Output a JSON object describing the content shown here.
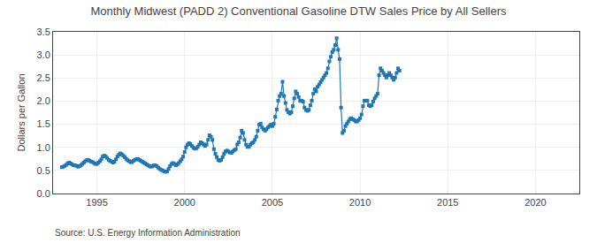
{
  "chart_data": {
    "type": "line",
    "title": "Monthly Midwest (PADD 2) Conventional Gasoline DTW Sales Price by All Sellers",
    "ylabel": "Dollars per Gallon",
    "annotations": [
      "Source: U.S. Energy Information Administration"
    ],
    "marker": "square",
    "line_style": "solid",
    "grid": true,
    "xlim": [
      1992.5,
      2022.5
    ],
    "xticks": [
      1995,
      2000,
      2005,
      2010,
      2015,
      2020
    ],
    "ylim": [
      0.0,
      3.5
    ],
    "yticks": [
      {
        "value": 0.0,
        "label": "0.0"
      },
      0.5,
      {
        "value": 1.0,
        "label": "1.0"
      },
      1.5,
      {
        "value": 2.0,
        "label": "2.0"
      },
      2.5,
      {
        "value": 3.0,
        "label": "3.0"
      },
      3.5
    ],
    "x": [
      1993.0,
      1993.083,
      1993.167,
      1993.25,
      1993.333,
      1993.417,
      1993.5,
      1993.583,
      1993.667,
      1993.75,
      1993.833,
      1993.917,
      1994.0,
      1994.083,
      1994.167,
      1994.25,
      1994.333,
      1994.417,
      1994.5,
      1994.583,
      1994.667,
      1994.75,
      1994.833,
      1994.917,
      1995.0,
      1995.083,
      1995.167,
      1995.25,
      1995.333,
      1995.417,
      1995.5,
      1995.583,
      1995.667,
      1995.75,
      1995.833,
      1995.917,
      1996.0,
      1996.083,
      1996.167,
      1996.25,
      1996.333,
      1996.417,
      1996.5,
      1996.583,
      1996.667,
      1996.75,
      1996.833,
      1996.917,
      1997.0,
      1997.083,
      1997.167,
      1997.25,
      1997.333,
      1997.417,
      1997.5,
      1997.583,
      1997.667,
      1997.75,
      1997.833,
      1997.917,
      1998.0,
      1998.083,
      1998.167,
      1998.25,
      1998.333,
      1998.417,
      1998.5,
      1998.583,
      1998.667,
      1998.75,
      1998.833,
      1998.917,
      1999.0,
      1999.083,
      1999.167,
      1999.25,
      1999.333,
      1999.417,
      1999.5,
      1999.583,
      1999.667,
      1999.75,
      1999.833,
      1999.917,
      2000.0,
      2000.083,
      2000.167,
      2000.25,
      2000.333,
      2000.417,
      2000.5,
      2000.583,
      2000.667,
      2000.75,
      2000.833,
      2000.917,
      2001.0,
      2001.083,
      2001.167,
      2001.25,
      2001.333,
      2001.417,
      2001.5,
      2001.583,
      2001.667,
      2001.75,
      2001.833,
      2001.917,
      2002.0,
      2002.083,
      2002.167,
      2002.25,
      2002.333,
      2002.417,
      2002.5,
      2002.583,
      2002.667,
      2002.75,
      2002.833,
      2002.917,
      2003.0,
      2003.083,
      2003.167,
      2003.25,
      2003.333,
      2003.417,
      2003.5,
      2003.583,
      2003.667,
      2003.75,
      2003.833,
      2003.917,
      2004.0,
      2004.083,
      2004.167,
      2004.25,
      2004.333,
      2004.417,
      2004.5,
      2004.583,
      2004.667,
      2004.75,
      2004.833,
      2004.917,
      2005.0,
      2005.083,
      2005.167,
      2005.25,
      2005.333,
      2005.417,
      2005.5,
      2005.583,
      2005.667,
      2005.75,
      2005.833,
      2005.917,
      2006.0,
      2006.083,
      2006.167,
      2006.25,
      2006.333,
      2006.417,
      2006.5,
      2006.583,
      2006.667,
      2006.75,
      2006.833,
      2006.917,
      2007.0,
      2007.083,
      2007.167,
      2007.25,
      2007.333,
      2007.417,
      2007.5,
      2007.583,
      2007.667,
      2007.75,
      2007.833,
      2007.917,
      2008.0,
      2008.083,
      2008.167,
      2008.25,
      2008.333,
      2008.417,
      2008.5,
      2008.583,
      2008.667,
      2008.75,
      2008.833,
      2008.917,
      2009.0,
      2009.083,
      2009.167,
      2009.25,
      2009.333,
      2009.417,
      2009.5,
      2009.583,
      2009.667,
      2009.75,
      2009.833,
      2009.917,
      2010.0,
      2010.083,
      2010.167,
      2010.25,
      2010.333,
      2010.417,
      2010.5,
      2010.583,
      2010.667,
      2010.75,
      2010.833,
      2010.917,
      2011.0,
      2011.083,
      2011.167,
      2011.25,
      2011.333,
      2011.417,
      2011.5,
      2011.583,
      2011.667,
      2011.75,
      2011.833,
      2011.917,
      2012.0,
      2012.083,
      2012.167,
      2012.25
    ],
    "values": [
      0.57,
      0.58,
      0.6,
      0.62,
      0.65,
      0.67,
      0.65,
      0.63,
      0.61,
      0.61,
      0.6,
      0.58,
      0.59,
      0.61,
      0.64,
      0.67,
      0.7,
      0.72,
      0.73,
      0.71,
      0.69,
      0.68,
      0.66,
      0.64,
      0.64,
      0.67,
      0.7,
      0.74,
      0.8,
      0.82,
      0.8,
      0.77,
      0.73,
      0.71,
      0.69,
      0.67,
      0.69,
      0.74,
      0.8,
      0.84,
      0.87,
      0.85,
      0.82,
      0.79,
      0.75,
      0.72,
      0.7,
      0.68,
      0.68,
      0.71,
      0.73,
      0.74,
      0.75,
      0.73,
      0.71,
      0.69,
      0.67,
      0.65,
      0.63,
      0.61,
      0.59,
      0.58,
      0.59,
      0.61,
      0.61,
      0.59,
      0.56,
      0.53,
      0.51,
      0.5,
      0.48,
      0.47,
      0.48,
      0.53,
      0.59,
      0.64,
      0.66,
      0.64,
      0.61,
      0.63,
      0.66,
      0.7,
      0.74,
      0.8,
      0.9,
      1.0,
      1.06,
      1.09,
      1.07,
      1.03,
      0.99,
      0.97,
      0.98,
      1.01,
      1.06,
      1.11,
      1.09,
      1.06,
      1.03,
      1.06,
      1.16,
      1.26,
      1.23,
      1.16,
      0.96,
      0.86,
      0.79,
      0.73,
      0.71,
      0.73,
      0.79,
      0.86,
      0.91,
      0.93,
      0.91,
      0.89,
      0.88,
      0.91,
      0.94,
      0.96,
      1.06,
      1.11,
      1.21,
      1.36,
      1.31,
      1.16,
      1.06,
      1.01,
      1.01,
      1.06,
      1.09,
      1.11,
      1.16,
      1.23,
      1.36,
      1.49,
      1.51,
      1.43,
      1.39,
      1.36,
      1.39,
      1.43,
      1.46,
      1.49,
      1.46,
      1.51,
      1.66,
      1.82,
      2.01,
      2.11,
      2.16,
      2.42,
      2.11,
      1.96,
      1.81,
      1.76,
      1.73,
      1.76,
      1.89,
      2.06,
      2.21,
      2.16,
      2.09,
      2.01,
      2.01,
      1.99,
      1.86,
      1.81,
      1.79,
      1.81,
      1.91,
      2.01,
      2.16,
      2.26,
      2.21,
      2.31,
      2.36,
      2.41,
      2.46,
      2.51,
      2.56,
      2.61,
      2.71,
      2.86,
      2.96,
      3.06,
      3.11,
      3.21,
      3.36,
      3.11,
      2.91,
      1.86,
      1.31,
      1.36,
      1.46,
      1.51,
      1.56,
      1.61,
      1.63,
      1.61,
      1.59,
      1.56,
      1.56,
      1.59,
      1.63,
      1.71,
      1.89,
      2.01,
      2.01,
      2.01,
      1.91,
      1.89,
      1.91,
      1.99,
      2.06,
      2.11,
      2.16,
      2.56,
      2.71,
      2.66,
      2.61,
      2.56,
      2.51,
      2.56,
      2.61,
      2.56,
      2.51,
      2.46,
      2.51,
      2.61,
      2.71,
      2.66
    ]
  }
}
